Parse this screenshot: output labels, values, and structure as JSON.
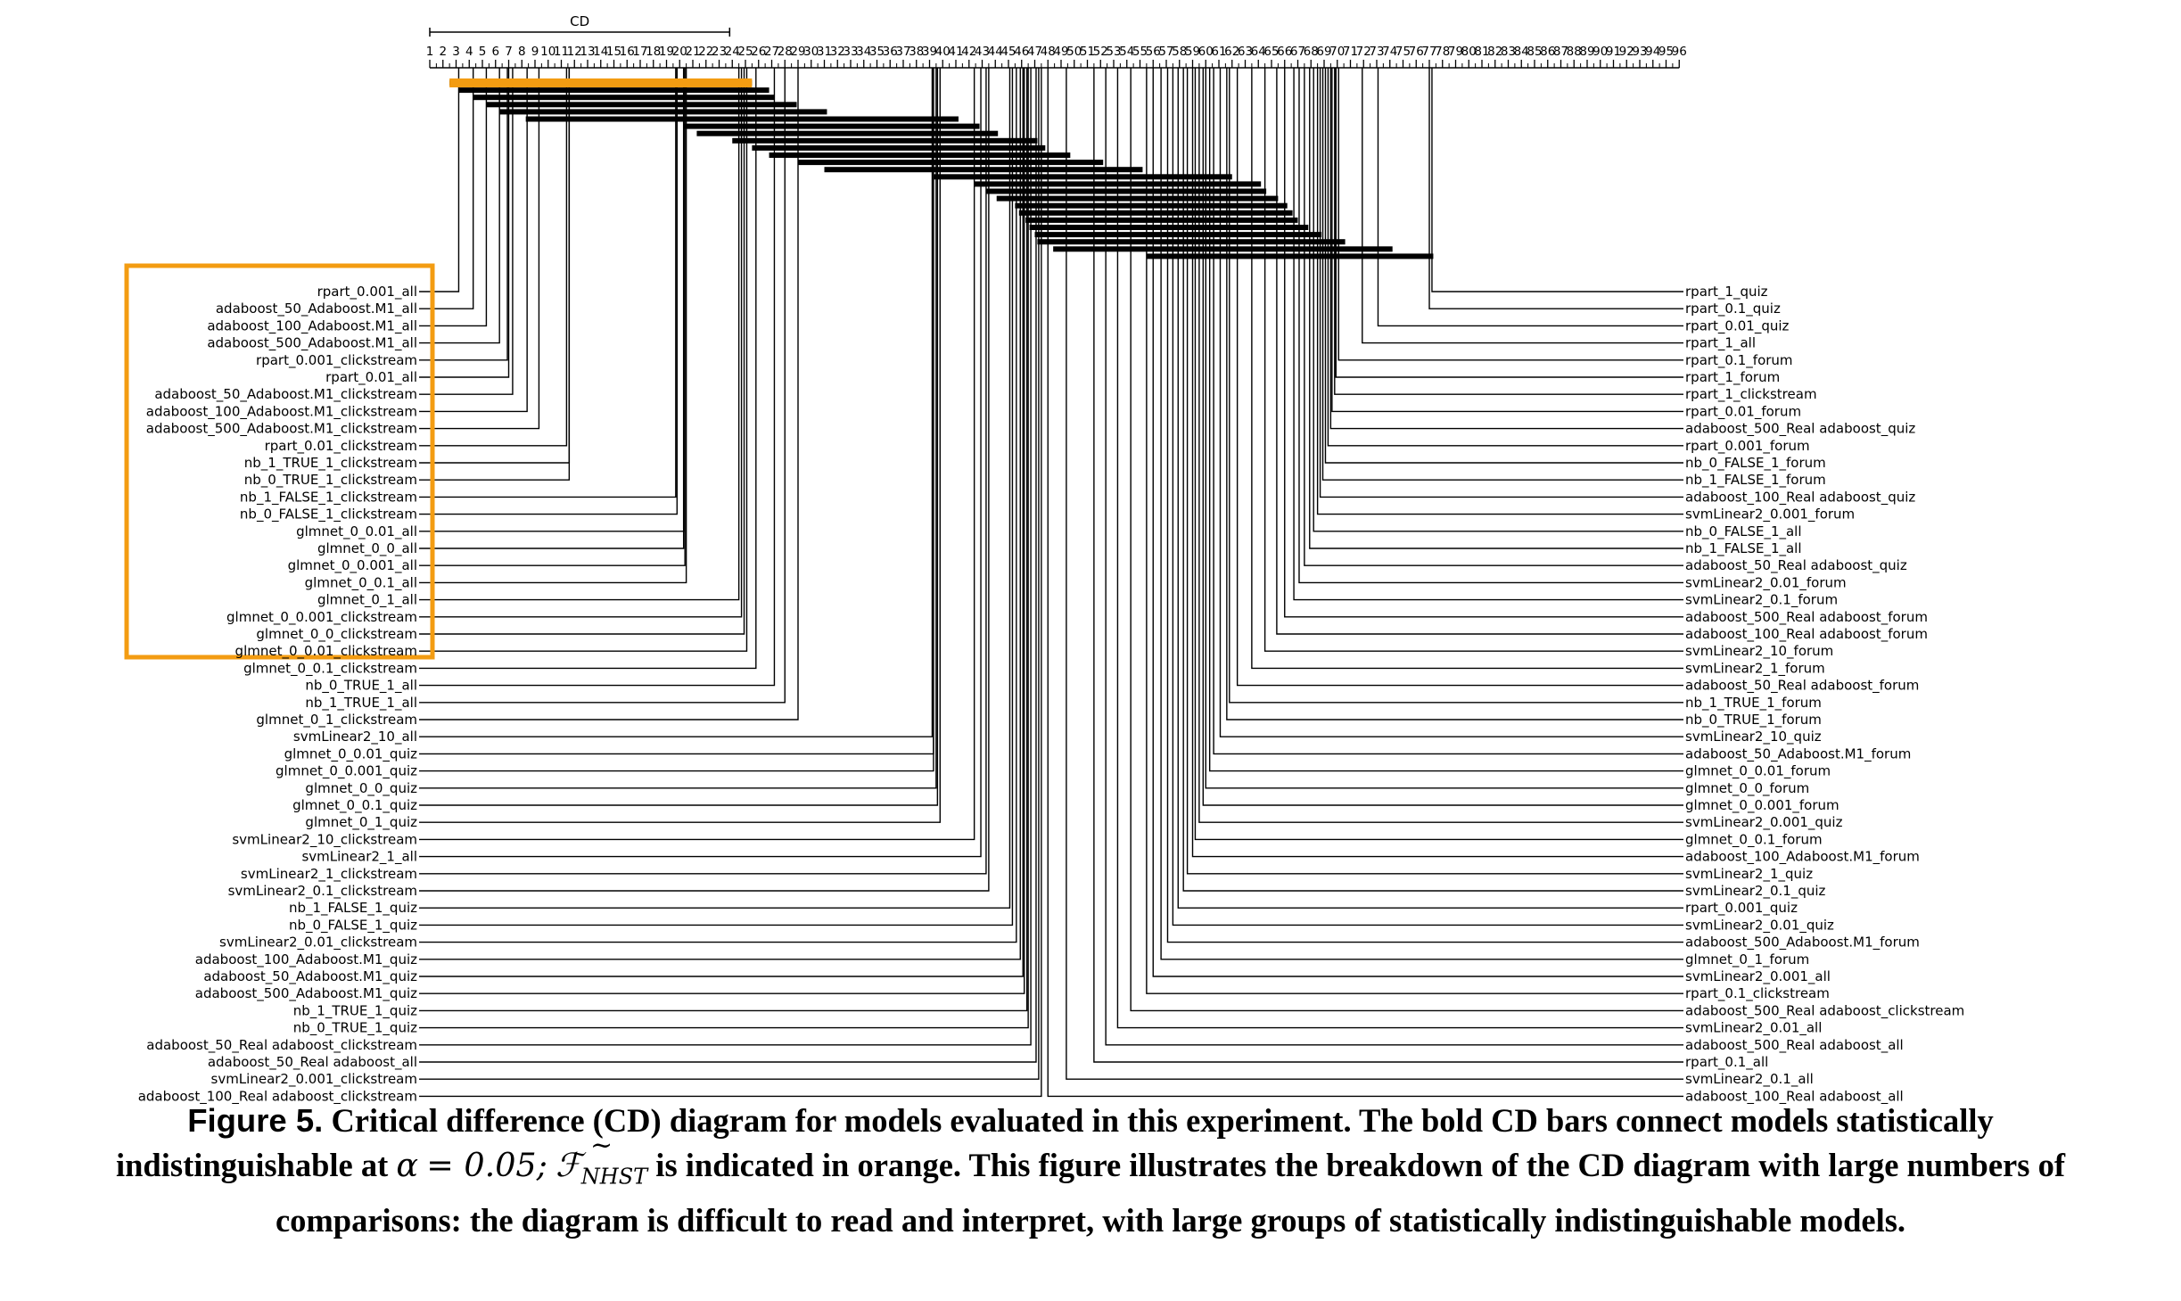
{
  "colors": {
    "highlight": "#f39c12",
    "ink": "#000000"
  },
  "chart_data": {
    "type": "critical_difference_diagram",
    "cd_label": "CD",
    "cd_value": 22.8,
    "rank_axis": {
      "min": 1,
      "max": 96
    },
    "alpha": "0.05",
    "highlight_color": "#f39c12",
    "left_models": [
      {
        "name": "rpart_0.001_all",
        "rank": 3.2
      },
      {
        "name": "adaboost_50_Adaboost.M1_all",
        "rank": 4.3
      },
      {
        "name": "adaboost_100_Adaboost.M1_all",
        "rank": 5.3
      },
      {
        "name": "adaboost_500_Adaboost.M1_all",
        "rank": 6.3
      },
      {
        "name": "rpart_0.001_clickstream",
        "rank": 6.9
      },
      {
        "name": "rpart_0.01_all",
        "rank": 7.0
      },
      {
        "name": "adaboost_50_Adaboost.M1_clickstream",
        "rank": 7.3
      },
      {
        "name": "adaboost_100_Adaboost.M1_clickstream",
        "rank": 8.4
      },
      {
        "name": "adaboost_500_Adaboost.M1_clickstream",
        "rank": 9.3
      },
      {
        "name": "rpart_0.01_clickstream",
        "rank": 11.4
      },
      {
        "name": "nb_1_TRUE_1_clickstream",
        "rank": 11.6
      },
      {
        "name": "nb_0_TRUE_1_clickstream",
        "rank": 11.6
      },
      {
        "name": "nb_1_FALSE_1_clickstream",
        "rank": 19.7
      },
      {
        "name": "nb_0_FALSE_1_clickstream",
        "rank": 19.8
      },
      {
        "name": "glmnet_0_0.01_all",
        "rank": 20.3
      },
      {
        "name": "glmnet_0_0_all",
        "rank": 20.3
      },
      {
        "name": "glmnet_0_0.001_all",
        "rank": 20.4
      },
      {
        "name": "glmnet_0_0.1_all",
        "rank": 20.5
      },
      {
        "name": "glmnet_0_1_all",
        "rank": 24.5
      },
      {
        "name": "glmnet_0_0.001_clickstream",
        "rank": 24.7
      },
      {
        "name": "glmnet_0_0_clickstream",
        "rank": 24.9
      },
      {
        "name": "glmnet_0_0.01_clickstream",
        "rank": 25.1
      },
      {
        "name": "glmnet_0_0.1_clickstream",
        "rank": 25.8
      },
      {
        "name": "nb_0_TRUE_1_all",
        "rank": 27.2
      },
      {
        "name": "nb_1_TRUE_1_all",
        "rank": 28.0
      },
      {
        "name": "glmnet_0_1_clickstream",
        "rank": 29.0
      },
      {
        "name": "svmLinear2_10_all",
        "rank": 39.2
      },
      {
        "name": "glmnet_0_0.01_quiz",
        "rank": 39.3
      },
      {
        "name": "glmnet_0_0.001_quiz",
        "rank": 39.3
      },
      {
        "name": "glmnet_0_0_quiz",
        "rank": 39.5
      },
      {
        "name": "glmnet_0_0.1_quiz",
        "rank": 39.6
      },
      {
        "name": "glmnet_0_1_quiz",
        "rank": 39.8
      },
      {
        "name": "svmLinear2_10_clickstream",
        "rank": 42.4
      },
      {
        "name": "svmLinear2_1_all",
        "rank": 42.9
      },
      {
        "name": "svmLinear2_1_clickstream",
        "rank": 43.3
      },
      {
        "name": "svmLinear2_0.1_clickstream",
        "rank": 43.5
      },
      {
        "name": "nb_1_FALSE_1_quiz",
        "rank": 45.1
      },
      {
        "name": "nb_0_FALSE_1_quiz",
        "rank": 45.3
      },
      {
        "name": "svmLinear2_0.01_clickstream",
        "rank": 45.6
      },
      {
        "name": "adaboost_100_Adaboost.M1_quiz",
        "rank": 45.9
      },
      {
        "name": "adaboost_50_Adaboost.M1_quiz",
        "rank": 46.1
      },
      {
        "name": "adaboost_500_Adaboost.M1_quiz",
        "rank": 46.2
      },
      {
        "name": "nb_1_TRUE_1_quiz",
        "rank": 46.4
      },
      {
        "name": "nb_0_TRUE_1_quiz",
        "rank": 46.5
      },
      {
        "name": "adaboost_50_Real adaboost_clickstream",
        "rank": 46.7
      },
      {
        "name": "adaboost_50_Real adaboost_all",
        "rank": 47.1
      },
      {
        "name": "svmLinear2_0.001_clickstream",
        "rank": 47.3
      },
      {
        "name": "adaboost_100_Real adaboost_clickstream",
        "rank": 47.5
      }
    ],
    "right_models": [
      {
        "name": "rpart_1_quiz",
        "rank": 77.2
      },
      {
        "name": "rpart_0.1_quiz",
        "rank": 77.0
      },
      {
        "name": "rpart_0.01_quiz",
        "rank": 73.1
      },
      {
        "name": "rpart_1_all",
        "rank": 71.9
      },
      {
        "name": "rpart_0.1_forum",
        "rank": 70.1
      },
      {
        "name": "rpart_1_forum",
        "rank": 69.9
      },
      {
        "name": "rpart_1_clickstream",
        "rank": 69.8
      },
      {
        "name": "rpart_0.01_forum",
        "rank": 69.6
      },
      {
        "name": "adaboost_500_Real adaboost_quiz",
        "rank": 69.5
      },
      {
        "name": "rpart_0.001_forum",
        "rank": 69.3
      },
      {
        "name": "nb_0_FALSE_1_forum",
        "rank": 69.1
      },
      {
        "name": "nb_1_FALSE_1_forum",
        "rank": 68.9
      },
      {
        "name": "adaboost_100_Real adaboost_quiz",
        "rank": 68.7
      },
      {
        "name": "svmLinear2_0.001_forum",
        "rank": 68.5
      },
      {
        "name": "nb_0_FALSE_1_all",
        "rank": 68.2
      },
      {
        "name": "nb_1_FALSE_1_all",
        "rank": 67.9
      },
      {
        "name": "adaboost_50_Real adaboost_quiz",
        "rank": 67.5
      },
      {
        "name": "svmLinear2_0.01_forum",
        "rank": 67.1
      },
      {
        "name": "svmLinear2_0.1_forum",
        "rank": 66.7
      },
      {
        "name": "adaboost_500_Real adaboost_forum",
        "rank": 66.0
      },
      {
        "name": "adaboost_100_Real adaboost_forum",
        "rank": 65.4
      },
      {
        "name": "svmLinear2_10_forum",
        "rank": 64.5
      },
      {
        "name": "svmLinear2_1_forum",
        "rank": 63.5
      },
      {
        "name": "adaboost_50_Real adaboost_forum",
        "rank": 62.4
      },
      {
        "name": "nb_1_TRUE_1_forum",
        "rank": 61.8
      },
      {
        "name": "nb_0_TRUE_1_forum",
        "rank": 61.6
      },
      {
        "name": "svmLinear2_10_quiz",
        "rank": 61.1
      },
      {
        "name": "adaboost_50_Adaboost.M1_forum",
        "rank": 60.6
      },
      {
        "name": "glmnet_0_0.01_forum",
        "rank": 60.3
      },
      {
        "name": "glmnet_0_0_forum",
        "rank": 60.0
      },
      {
        "name": "glmnet_0_0.001_forum",
        "rank": 59.8
      },
      {
        "name": "svmLinear2_0.001_quiz",
        "rank": 59.5
      },
      {
        "name": "glmnet_0_0.1_forum",
        "rank": 59.2
      },
      {
        "name": "adaboost_100_Adaboost.M1_forum",
        "rank": 59.0
      },
      {
        "name": "svmLinear2_1_quiz",
        "rank": 58.6
      },
      {
        "name": "svmLinear2_0.1_quiz",
        "rank": 58.3
      },
      {
        "name": "rpart_0.001_quiz",
        "rank": 57.9
      },
      {
        "name": "svmLinear2_0.01_quiz",
        "rank": 57.5
      },
      {
        "name": "adaboost_500_Adaboost.M1_forum",
        "rank": 57.1
      },
      {
        "name": "glmnet_0_1_forum",
        "rank": 56.6
      },
      {
        "name": "svmLinear2_0.001_all",
        "rank": 56.0
      },
      {
        "name": "rpart_0.1_clickstream",
        "rank": 55.5
      },
      {
        "name": "adaboost_500_Real adaboost_clickstream",
        "rank": 54.3
      },
      {
        "name": "svmLinear2_0.01_all",
        "rank": 53.3
      },
      {
        "name": "adaboost_500_Real adaboost_all",
        "rank": 52.4
      },
      {
        "name": "rpart_0.1_all",
        "rank": 51.5
      },
      {
        "name": "svmLinear2_0.1_all",
        "rank": 49.4
      },
      {
        "name": "adaboost_100_Real adaboost_all",
        "rank": 48.0
      }
    ],
    "cd_groups": [
      [
        2.5,
        25.5
      ],
      [
        3.2,
        26.8
      ],
      [
        4.3,
        27.2
      ],
      [
        5.3,
        28.9
      ],
      [
        6.3,
        31.2
      ],
      [
        8.3,
        41.2
      ],
      [
        20.3,
        42.8
      ],
      [
        21.3,
        44.2
      ],
      [
        24.0,
        47.2
      ],
      [
        25.5,
        47.8
      ],
      [
        26.8,
        49.7
      ],
      [
        29.0,
        52.2
      ],
      [
        31.0,
        55.2
      ],
      [
        39.3,
        62.0
      ],
      [
        42.4,
        64.2
      ],
      [
        43.3,
        64.6
      ],
      [
        44.1,
        65.5
      ],
      [
        45.5,
        66.2
      ],
      [
        45.8,
        66.6
      ],
      [
        46.3,
        67.0
      ],
      [
        46.6,
        67.8
      ],
      [
        47.0,
        68.8
      ],
      [
        47.2,
        70.6
      ],
      [
        48.4,
        74.2
      ],
      [
        55.5,
        77.3
      ]
    ],
    "highlight_group": [
      2.5,
      25.5
    ]
  },
  "caption": {
    "lead": "Figure 5.",
    "part1": "Critical difference (CD) diagram for models evaluated in this experiment. The bold CD bars connect models statistically indistinguishable at",
    "alpha_symbol": "α",
    "equals": "= 0.05;",
    "f_symbol": "ℱ",
    "f_tilde": "~",
    "f_subscript": "NHST",
    "part2": "is indicated in orange. This figure illustrates the breakdown of the CD diagram with large numbers of comparisons: the diagram is difficult to read and interpret, with large groups of statistically indistinguishable models."
  }
}
